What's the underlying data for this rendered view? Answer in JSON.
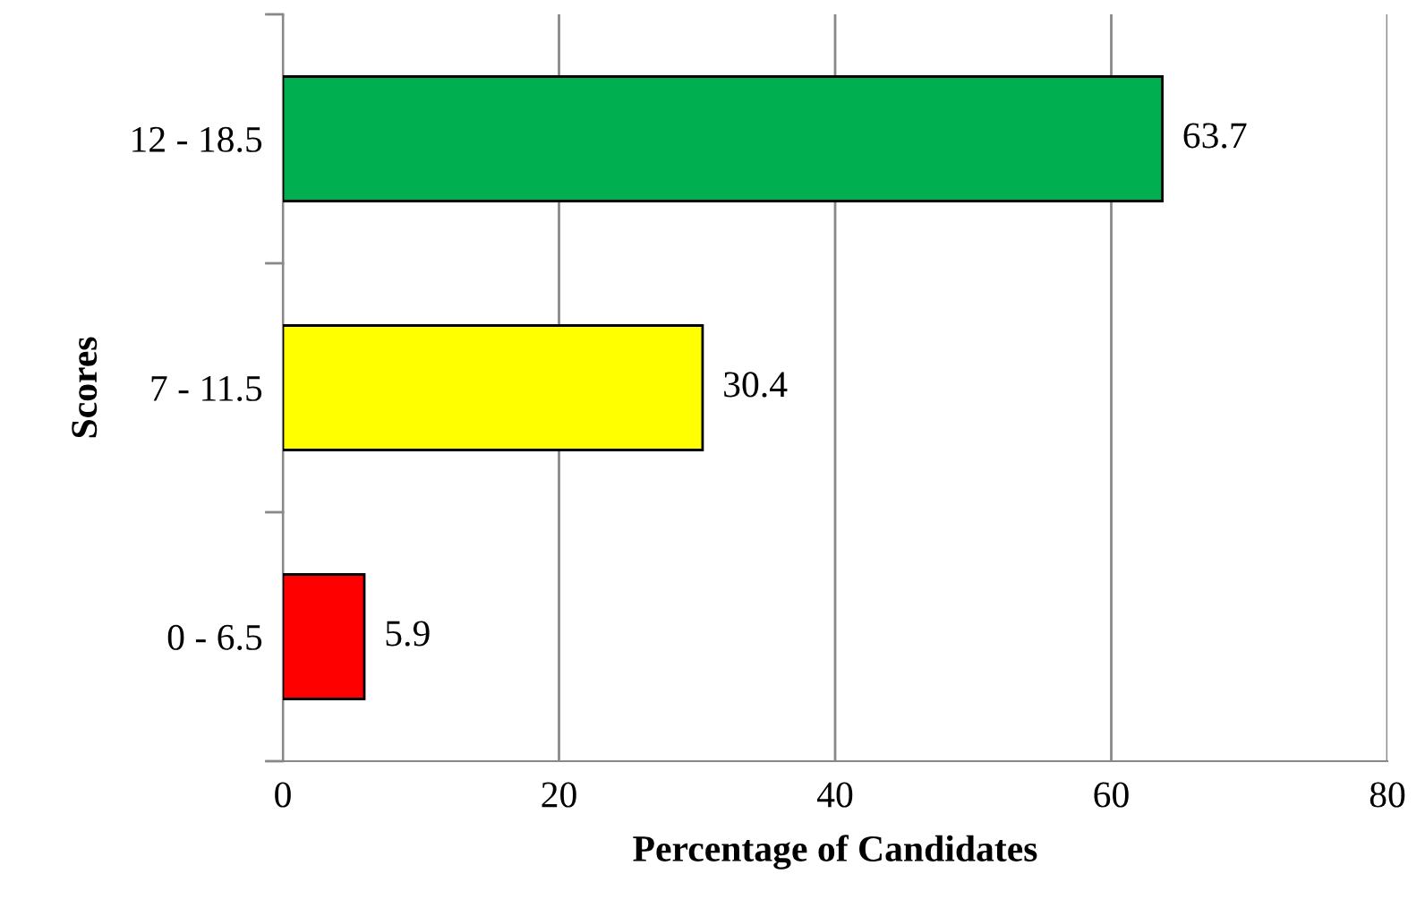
{
  "chart_data": {
    "type": "bar",
    "orientation": "horizontal",
    "xlabel": "Percentage of Candidates",
    "ylabel": "Scores",
    "categories": [
      "12 - 18.5",
      "7 - 11.5",
      "0 - 6.5"
    ],
    "values": [
      63.7,
      30.4,
      5.9
    ],
    "colors": [
      "#00b050",
      "#ffff00",
      "#ff0000"
    ],
    "xlim": [
      0,
      80
    ],
    "xticks": [
      0,
      20,
      40,
      60,
      80
    ],
    "grid": "x",
    "data_labels": true
  }
}
